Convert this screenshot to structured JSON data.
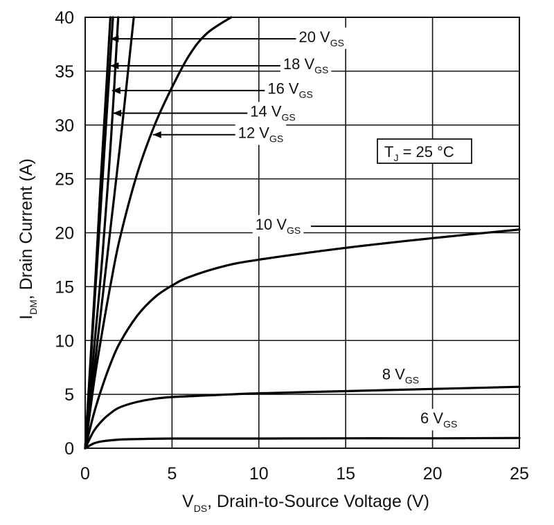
{
  "chart_data": {
    "type": "line",
    "title": "",
    "xlabel": {
      "main": "V",
      "sub": "DS",
      "rest": ", Drain-to-Source Voltage (V)"
    },
    "ylabel": {
      "main": "I",
      "sub": "DM",
      "rest": ", Drain Current (A)"
    },
    "xlim": [
      0,
      25
    ],
    "ylim": [
      0,
      40
    ],
    "xticks": [
      0,
      5,
      10,
      15,
      20,
      25
    ],
    "yticks": [
      0,
      5,
      10,
      15,
      20,
      25,
      30,
      35,
      40
    ],
    "grid": true,
    "annotation": {
      "main": "T",
      "sub": "J",
      "rest": " = 25 °C"
    },
    "series": [
      {
        "name": "20 V_GS",
        "label_main": "20 V",
        "label_sub": "GS",
        "x": [
          0,
          0.3,
          0.6,
          0.9,
          1.2,
          1.45
        ],
        "y": [
          0,
          8,
          16,
          25,
          33,
          40
        ]
      },
      {
        "name": "18 V_GS",
        "label_main": "18 V",
        "label_sub": "GS",
        "x": [
          0,
          0.3,
          0.6,
          0.9,
          1.2,
          1.6
        ],
        "y": [
          0,
          7.5,
          15,
          22.5,
          30,
          40
        ]
      },
      {
        "name": "16 V_GS",
        "label_main": "16 V",
        "label_sub": "GS",
        "x": [
          0,
          0.5,
          1.0,
          1.5,
          1.9
        ],
        "y": [
          0,
          9,
          18,
          29,
          40
        ]
      },
      {
        "name": "14 V_GS",
        "label_main": "14 V",
        "label_sub": "GS",
        "x": [
          0,
          0.5,
          1.0,
          1.5,
          2.0,
          2.8
        ],
        "y": [
          0,
          7,
          14,
          21,
          28,
          40
        ]
      },
      {
        "name": "12 V_GS",
        "label_main": "12 V",
        "label_sub": "GS",
        "x": [
          0,
          0.5,
          1,
          1.5,
          2,
          3,
          4,
          5,
          6,
          7,
          8.4
        ],
        "y": [
          0,
          6,
          11,
          15.5,
          19.5,
          25.5,
          30,
          33.5,
          36.5,
          38.5,
          40
        ]
      },
      {
        "name": "10 V_GS",
        "label_main": "10 V",
        "label_sub": "GS",
        "x": [
          0,
          0.5,
          1,
          1.5,
          2,
          3,
          4,
          5,
          6,
          8,
          10,
          15,
          20,
          25
        ],
        "y": [
          0,
          3.2,
          5.8,
          8,
          9.8,
          12.3,
          14,
          15.1,
          15.9,
          16.9,
          17.5,
          18.6,
          19.5,
          20.3
        ]
      },
      {
        "name": "8 V_GS",
        "label_main": "8 V",
        "label_sub": "GS",
        "x": [
          0,
          0.5,
          1,
          1.5,
          2,
          3,
          4,
          5,
          7,
          10,
          15,
          20,
          25
        ],
        "y": [
          0,
          1.6,
          2.6,
          3.3,
          3.8,
          4.3,
          4.6,
          4.75,
          4.9,
          5.1,
          5.3,
          5.5,
          5.7
        ]
      },
      {
        "name": "6 V_GS",
        "label_main": "6 V",
        "label_sub": "GS",
        "x": [
          0,
          0.5,
          1,
          2,
          3,
          5,
          10,
          15,
          20,
          25
        ],
        "y": [
          0,
          0.45,
          0.65,
          0.8,
          0.85,
          0.9,
          0.9,
          0.92,
          0.92,
          0.95
        ]
      }
    ],
    "colors": {
      "line": "#000000",
      "grid": "#111111",
      "background": "#ffffff"
    }
  }
}
